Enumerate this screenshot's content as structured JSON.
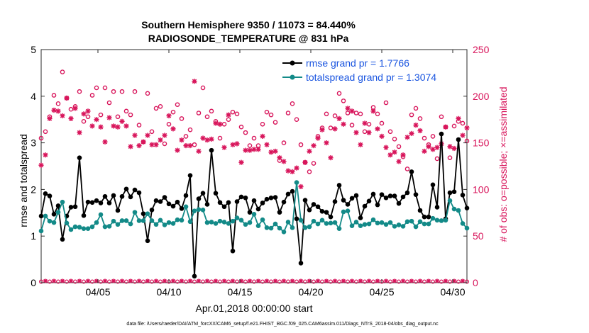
{
  "chart_data": {
    "type": "line",
    "title_line1": "Southern Hemisphere 9350 / 11073 = 84.440%",
    "title_line2": "RADIOSONDE_TEMPERATURE @ 831 hPa",
    "xlabel": "Apr.01,2018 00:00:00 start",
    "ylabel_left": "rmse and totalspread",
    "ylabel_right": "# of obs: o=possible; ×=assimilated",
    "footer": "data file: /Users/raeder/DAI/ATM_forcXX/CAM6_setup/f.e21.FHIST_BGC.f09_025.CAM6assim.011/Diags_NTrS_2018-04/obs_diag_output.nc",
    "x_tick_labels": [
      "04/05",
      "04/10",
      "04/15",
      "04/20",
      "04/25",
      "04/30"
    ],
    "x_tick_values": [
      5,
      10,
      15,
      20,
      25,
      30
    ],
    "xlim": [
      1,
      31
    ],
    "ylim_left": [
      0,
      5
    ],
    "ylim_right": [
      0,
      250
    ],
    "y_left_ticks": [
      "0",
      "1",
      "2",
      "3",
      "4",
      "5"
    ],
    "y_right_ticks": [
      "0",
      "50",
      "100",
      "150",
      "200",
      "250"
    ],
    "colors": {
      "rmse": "#000000",
      "spread": "#138a88",
      "obs": "#d8155b",
      "legend_text": "#1a55e0"
    },
    "series": [
      {
        "name": "rmse grand pr = 1.7766",
        "color": "#000000",
        "values": [
          1.43,
          1.91,
          1.86,
          1.47,
          1.65,
          0.93,
          1.43,
          1.62,
          1.63,
          2.68,
          1.44,
          1.73,
          1.72,
          1.76,
          1.71,
          1.85,
          1.71,
          1.87,
          1.55,
          1.85,
          2.01,
          1.84,
          1.99,
          1.93,
          1.48,
          0.9,
          1.56,
          1.76,
          1.74,
          1.83,
          1.69,
          1.64,
          1.73,
          1.59,
          1.87,
          2.3,
          0.14,
          1.8,
          1.92,
          1.68,
          2.84,
          1.92,
          1.72,
          1.63,
          1.72,
          0.68,
          1.74,
          1.84,
          1.82,
          1.51,
          1.76,
          1.58,
          1.71,
          1.79,
          1.82,
          1.83,
          1.51,
          1.73,
          1.9,
          1.96,
          1.37,
          0.42,
          1.77,
          1.56,
          1.68,
          1.63,
          1.53,
          1.51,
          1.41,
          1.74,
          2.09,
          1.77,
          1.68,
          1.81,
          1.87,
          1.39,
          1.64,
          1.75,
          1.9,
          1.67,
          1.89,
          1.82,
          1.86,
          1.86,
          1.7,
          1.84,
          1.93,
          2.38,
          1.89,
          1.55,
          1.41,
          1.41,
          2.1,
          1.62,
          3.19,
          1.37,
          1.93,
          1.95,
          3.07,
          1.88,
          1.6
        ]
      },
      {
        "name": "totalspread grand pr = 1.3074",
        "color": "#138a88",
        "values": [
          1.11,
          1.43,
          1.32,
          1.29,
          1.51,
          1.73,
          1.28,
          1.14,
          1.2,
          1.19,
          1.16,
          1.16,
          1.2,
          1.29,
          1.46,
          1.2,
          1.21,
          1.32,
          1.25,
          1.33,
          1.33,
          1.26,
          1.51,
          1.33,
          1.33,
          1.48,
          1.33,
          1.25,
          1.34,
          1.24,
          1.29,
          1.27,
          1.35,
          1.34,
          1.63,
          1.31,
          1.54,
          1.57,
          1.56,
          1.29,
          1.3,
          1.27,
          1.32,
          1.3,
          1.27,
          1.32,
          1.39,
          1.34,
          1.25,
          1.29,
          1.47,
          1.22,
          1.35,
          1.18,
          1.17,
          1.26,
          1.17,
          1.09,
          1.3,
          1.18,
          2.15,
          1.34,
          1.18,
          1.2,
          1.32,
          1.26,
          1.34,
          1.27,
          1.28,
          1.29,
          1.16,
          1.52,
          1.54,
          1.22,
          1.3,
          1.22,
          1.25,
          1.26,
          1.35,
          1.28,
          1.29,
          1.25,
          1.29,
          1.21,
          1.24,
          1.21,
          1.31,
          1.32,
          1.2,
          1.31,
          1.26,
          1.26,
          1.38,
          1.34,
          1.33,
          1.34,
          1.76,
          1.58,
          1.55,
          1.27,
          1.17
        ]
      }
    ],
    "obs_possible": [
      155,
      162,
      178,
      201,
      192,
      226,
      198,
      186,
      189,
      205,
      173,
      178,
      201,
      209,
      180,
      209,
      193,
      205,
      178,
      205,
      184,
      180,
      205,
      169,
      151,
      203,
      162,
      187,
      189,
      149,
      170,
      183,
      191,
      176,
      157,
      164,
      148,
      182,
      209,
      178,
      184,
      173,
      155,
      170,
      175,
      183,
      181,
      167,
      161,
      147,
      155,
      147,
      170,
      183,
      180,
      172,
      131,
      150,
      182,
      192,
      175,
      148,
      129,
      119,
      128,
      157,
      166,
      181,
      166,
      179,
      203,
      195,
      182,
      169,
      182,
      181,
      162,
      170,
      188,
      181,
      171,
      193,
      162,
      154,
      146,
      135,
      122,
      180,
      187,
      176,
      155,
      148,
      157,
      133,
      178,
      167,
      134,
      168,
      173,
      171,
      152
    ],
    "obs_assimilated": [
      126,
      137,
      176,
      185,
      184,
      179,
      198,
      176,
      187,
      161,
      181,
      184,
      168,
      175,
      167,
      151,
      177,
      168,
      167,
      173,
      168,
      146,
      158,
      147,
      151,
      158,
      148,
      148,
      153,
      158,
      179,
      165,
      142,
      153,
      147,
      147,
      216,
      141,
      155,
      153,
      154,
      171,
      170,
      145,
      180,
      148,
      149,
      129,
      142,
      142,
      143,
      143,
      157,
      148,
      140,
      141,
      134,
      130,
      120,
      119,
      123,
      103,
      129,
      141,
      147,
      155,
      164,
      150,
      134,
      165,
      176,
      170,
      187,
      184,
      161,
      148,
      171,
      161,
      184,
      165,
      157,
      145,
      137,
      140,
      130,
      137,
      156,
      160,
      169,
      163,
      141,
      146,
      143,
      145,
      149,
      167,
      146,
      144,
      176,
      158,
      166
    ]
  }
}
